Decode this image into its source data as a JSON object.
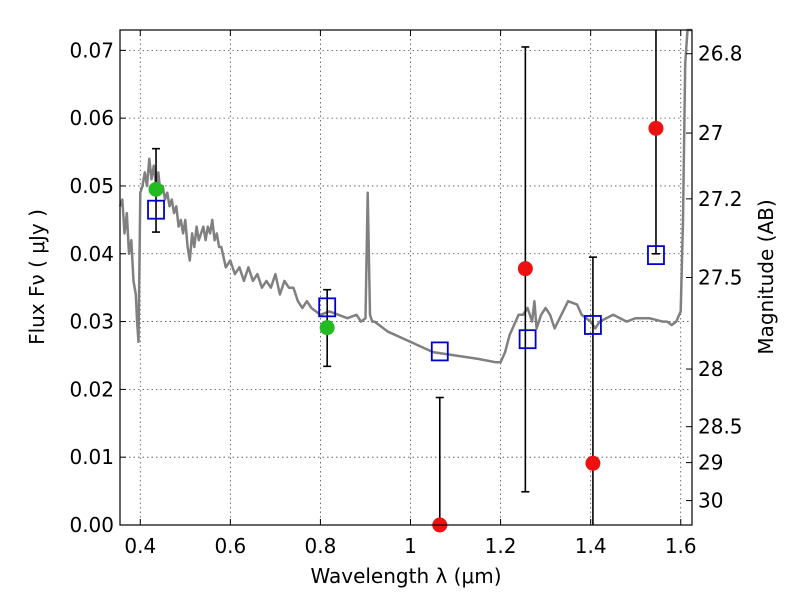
{
  "chart_data": {
    "type": "scatter",
    "title": "",
    "xlabel": "Wavelength  λ (μm)",
    "ylabel": "Flux  Fν  ( μJy )",
    "ylabel_right": "Magnitude (AB)",
    "xlim": [
      0.355,
      1.625
    ],
    "ylim": [
      0.0,
      0.073
    ],
    "grid": true,
    "x_ticks": [
      0.4,
      0.6,
      0.8,
      1.0,
      1.2,
      1.4,
      1.6
    ],
    "x_tick_labels": [
      "0.4",
      "0.6",
      "0.8",
      "1",
      "1.2",
      "1.4",
      "1.6"
    ],
    "y_ticks": [
      0.0,
      0.01,
      0.02,
      0.03,
      0.04,
      0.05,
      0.06,
      0.07
    ],
    "y_tick_labels": [
      "0.00",
      "0.01",
      "0.02",
      "0.03",
      "0.04",
      "0.05",
      "0.06",
      "0.07"
    ],
    "right_ticks": [
      {
        "label": "26.8",
        "flux": 0.0695
      },
      {
        "label": "27",
        "flux": 0.0578
      },
      {
        "label": "27.2",
        "flux": 0.0481
      },
      {
        "label": "27.5",
        "flux": 0.0365
      },
      {
        "label": "28",
        "flux": 0.023
      },
      {
        "label": "28.5",
        "flux": 0.0145
      },
      {
        "label": "29",
        "flux": 0.0092
      },
      {
        "label": "30",
        "flux": 0.0036
      }
    ],
    "colors": {
      "model": "#808080",
      "green": "#22bb22",
      "red": "#ee1111",
      "square": "#0000cc",
      "errorbar": "#000000"
    },
    "series": [
      {
        "kind": "model-sed-line",
        "x": [
          0.355,
          0.36,
          0.365,
          0.37,
          0.375,
          0.38,
          0.385,
          0.39,
          0.393,
          0.396,
          0.4,
          0.405,
          0.41,
          0.415,
          0.42,
          0.425,
          0.43,
          0.435,
          0.44,
          0.445,
          0.45,
          0.455,
          0.46,
          0.465,
          0.47,
          0.475,
          0.48,
          0.485,
          0.49,
          0.495,
          0.5,
          0.505,
          0.51,
          0.515,
          0.52,
          0.525,
          0.53,
          0.535,
          0.54,
          0.545,
          0.55,
          0.555,
          0.56,
          0.565,
          0.57,
          0.575,
          0.58,
          0.59,
          0.6,
          0.61,
          0.62,
          0.63,
          0.64,
          0.65,
          0.66,
          0.67,
          0.68,
          0.69,
          0.7,
          0.71,
          0.72,
          0.73,
          0.74,
          0.75,
          0.76,
          0.77,
          0.78,
          0.8,
          0.82,
          0.84,
          0.86,
          0.88,
          0.89,
          0.9,
          0.905,
          0.91,
          0.915,
          0.92,
          0.95,
          1.0,
          1.05,
          1.1,
          1.15,
          1.19,
          1.2,
          1.21,
          1.22,
          1.24,
          1.25,
          1.26,
          1.27,
          1.275,
          1.28,
          1.29,
          1.3,
          1.31,
          1.32,
          1.35,
          1.37,
          1.38,
          1.4,
          1.41,
          1.42,
          1.45,
          1.48,
          1.5,
          1.53,
          1.56,
          1.57,
          1.58,
          1.59,
          1.6,
          1.605,
          1.61,
          1.615,
          1.62,
          1.625
        ],
        "y": [
          0.047,
          0.048,
          0.043,
          0.046,
          0.04,
          0.042,
          0.036,
          0.034,
          0.03,
          0.027,
          0.049,
          0.05,
          0.052,
          0.05,
          0.054,
          0.051,
          0.053,
          0.05,
          0.052,
          0.049,
          0.05,
          0.048,
          0.049,
          0.047,
          0.048,
          0.046,
          0.047,
          0.044,
          0.045,
          0.043,
          0.045,
          0.041,
          0.039,
          0.043,
          0.041,
          0.044,
          0.042,
          0.043,
          0.044,
          0.042,
          0.044,
          0.043,
          0.045,
          0.042,
          0.043,
          0.041,
          0.041,
          0.038,
          0.039,
          0.037,
          0.038,
          0.036,
          0.038,
          0.036,
          0.037,
          0.035,
          0.036,
          0.035,
          0.037,
          0.034,
          0.036,
          0.035,
          0.035,
          0.033,
          0.032,
          0.033,
          0.032,
          0.031,
          0.0315,
          0.031,
          0.0305,
          0.031,
          0.03,
          0.0305,
          0.049,
          0.031,
          0.03,
          0.03,
          0.0285,
          0.027,
          0.0255,
          0.025,
          0.0245,
          0.024,
          0.024,
          0.0255,
          0.028,
          0.031,
          0.031,
          0.032,
          0.03,
          0.033,
          0.029,
          0.031,
          0.032,
          0.031,
          0.029,
          0.033,
          0.0325,
          0.031,
          0.03,
          0.029,
          0.03,
          0.031,
          0.03,
          0.0305,
          0.0305,
          0.03,
          0.03,
          0.0295,
          0.03,
          0.0315,
          0.045,
          0.068,
          0.073,
          0.073,
          0.073
        ]
      },
      {
        "kind": "green-points",
        "x": [
          0.435,
          0.815
        ],
        "y": [
          0.0495,
          0.0291
        ]
      },
      {
        "kind": "red-points",
        "x": [
          1.065,
          1.255,
          1.405,
          1.545
        ],
        "y": [
          0.0,
          0.0378,
          0.0091,
          0.0585
        ]
      },
      {
        "kind": "open-squares",
        "x": [
          0.435,
          0.815,
          1.065,
          1.26,
          1.405,
          1.545
        ],
        "y": [
          0.0465,
          0.0321,
          0.0256,
          0.0274,
          0.0295,
          0.0398
        ]
      }
    ],
    "errorbars": [
      {
        "x": 0.435,
        "low": 0.0432,
        "high": 0.0555
      },
      {
        "x": 0.815,
        "low": 0.0234,
        "high": 0.0347
      },
      {
        "x": 1.065,
        "low": 0.0,
        "high": 0.0188
      },
      {
        "x": 1.255,
        "low": 0.0049,
        "high": 0.0705
      },
      {
        "x": 1.405,
        "low": 0.0,
        "high": 0.0395
      },
      {
        "x": 1.545,
        "low": 0.04,
        "high": 0.073
      }
    ]
  }
}
